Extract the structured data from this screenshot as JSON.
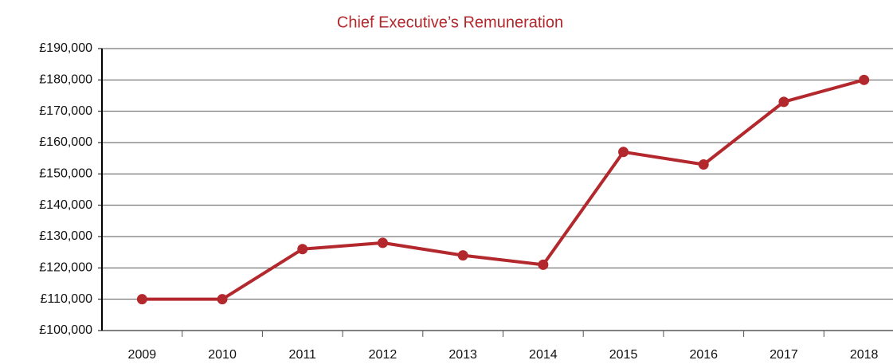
{
  "chart_data": {
    "type": "line",
    "title": "Chief Executive’s Remuneration",
    "title_color": "#b3282d",
    "categories": [
      "2009",
      "2010",
      "2011",
      "2012",
      "2013",
      "2014",
      "2015",
      "2016",
      "2017",
      "2018"
    ],
    "series": [
      {
        "name": "Chief Executive’s Remuneration",
        "color": "#b3282d",
        "values": [
          110000,
          110000,
          126000,
          128000,
          124000,
          121000,
          157000,
          153000,
          173000,
          180000
        ]
      }
    ],
    "ylim": [
      100000,
      190000
    ],
    "yticks": [
      {
        "value": 100000,
        "label": "£100,000"
      },
      {
        "value": 110000,
        "label": "£110,000"
      },
      {
        "value": 120000,
        "label": "£120,000"
      },
      {
        "value": 130000,
        "label": "£130,000"
      },
      {
        "value": 140000,
        "label": "£140,000"
      },
      {
        "value": 150000,
        "label": "£150,000"
      },
      {
        "value": 160000,
        "label": "£160,000"
      },
      {
        "value": 170000,
        "label": "£170,000"
      },
      {
        "value": 180000,
        "label": "£180,000"
      },
      {
        "value": 190000,
        "label": "£190,000"
      }
    ],
    "grid": true
  }
}
